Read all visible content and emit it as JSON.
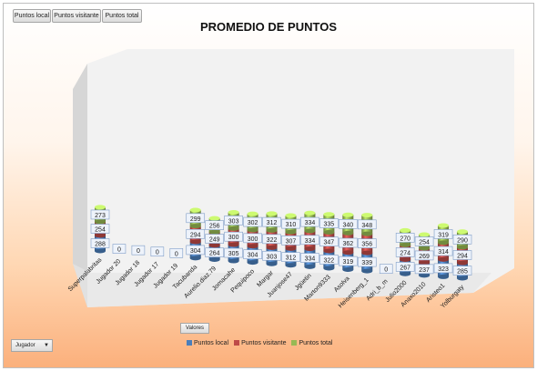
{
  "buttons": {
    "local": "Puntos local",
    "visitante": "Puntos visitante",
    "total": "Puntos total"
  },
  "title": "PROMEDIO DE PUNTOS",
  "field_button": "Valores",
  "dropdown_label": "Jugador",
  "colors": {
    "local": "#4a7ebb",
    "visitante": "#be4b48",
    "total": "#98b954"
  },
  "chart_data": {
    "type": "bar",
    "stacked": true,
    "title": "PROMEDIO DE PUNTOS",
    "categories": [
      "Superpalabritas",
      "Jugador 20",
      "Jugador 18",
      "Jugador 17",
      "Jugador 19",
      "Tacubanda",
      "Aurelio.diaz.79",
      "Jomacahe",
      "Pequipoco",
      "Margar",
      "Juanjose47",
      "Jgüetin",
      "Marton9333",
      "Asolva",
      "Heisenberg_1",
      "Adri_b_m",
      "Julio2000",
      "Anaxo2010",
      "Aristeo1",
      "Yolburgaty"
    ],
    "series": [
      {
        "name": "Puntos local",
        "values": [
          288,
          0,
          0,
          0,
          0,
          304,
          264,
          305,
          304,
          303,
          312,
          334,
          322,
          319,
          339,
          0,
          267,
          237,
          323,
          285
        ]
      },
      {
        "name": "Puntos visitante",
        "values": [
          254,
          0,
          0,
          0,
          0,
          294,
          249,
          300,
          300,
          322,
          307,
          334,
          347,
          362,
          356,
          0,
          274,
          269,
          314,
          294
        ]
      },
      {
        "name": "Puntos total",
        "values": [
          273,
          0,
          0,
          0,
          0,
          299,
          256,
          303,
          302,
          312,
          310,
          334,
          335,
          340,
          348,
          0,
          270,
          254,
          319,
          290
        ]
      }
    ],
    "legend": "bottom",
    "grid": false
  }
}
